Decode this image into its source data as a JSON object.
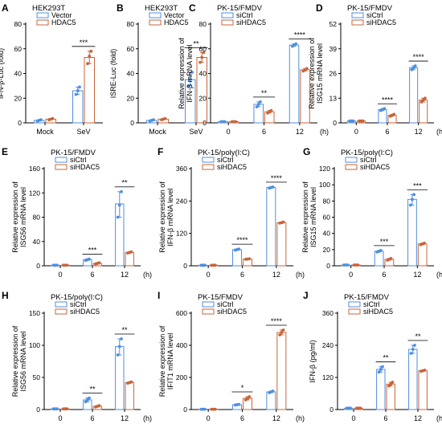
{
  "colors": {
    "series_a": "#4f8fe0",
    "series_b": "#c8643a",
    "axis": "#000000"
  },
  "chart_data": [
    {
      "panel": "A",
      "type": "bar",
      "title": "HEK293T",
      "ylabel": "IFN-β-Luc (fold)",
      "xlabel": "",
      "categories": [
        "Mock",
        "SeV"
      ],
      "ylim": [
        0,
        80
      ],
      "yticks": [
        0,
        20,
        40,
        60,
        80
      ],
      "series": [
        {
          "name": "Vector",
          "values": [
            2,
            26
          ],
          "points": [
            [
              1.5,
              2,
              2.5
            ],
            [
              23,
              26,
              29
            ]
          ]
        },
        {
          "name": "HDAC5",
          "values": [
            3,
            53
          ],
          "points": [
            [
              2.5,
              3,
              3.5
            ],
            [
              48,
              54,
              58
            ]
          ]
        }
      ],
      "significance": [
        "",
        "***"
      ]
    },
    {
      "panel": "B",
      "type": "bar",
      "title": "HEK293T",
      "ylabel": "ISRE-Luc (fold)",
      "xlabel": "",
      "categories": [
        "Mock",
        "SeV"
      ],
      "ylim": [
        0,
        80
      ],
      "yticks": [
        0,
        20,
        40,
        60,
        80
      ],
      "series": [
        {
          "name": "Vector",
          "values": [
            2,
            35
          ],
          "points": [
            [
              1.5,
              2,
              2.5
            ],
            [
              30,
              35,
              41
            ]
          ]
        },
        {
          "name": "HDAC5",
          "values": [
            3,
            53
          ],
          "points": [
            [
              2.5,
              3,
              3.5
            ],
            [
              49,
              53,
              57
            ]
          ]
        }
      ],
      "significance": [
        "",
        "**"
      ]
    },
    {
      "panel": "C",
      "type": "bar",
      "title": "PK-15/FMDV",
      "ylabel": "Relative expression of IFN-β mRNA level",
      "xlabel": "(h)",
      "categories": [
        "0",
        "6",
        "12"
      ],
      "ylim": [
        0,
        80
      ],
      "yticks": [
        0,
        20,
        40,
        60,
        80
      ],
      "series": [
        {
          "name": "siCtrl",
          "values": [
            1,
            15,
            63
          ],
          "points": [
            [
              1,
              1,
              1
            ],
            [
              13,
              15,
              17
            ],
            [
              62,
              63,
              64
            ]
          ]
        },
        {
          "name": "siHDAC5",
          "values": [
            1,
            9,
            43
          ],
          "points": [
            [
              1,
              1,
              1
            ],
            [
              8,
              9,
              10
            ],
            [
              42,
              43,
              44
            ]
          ]
        }
      ],
      "significance": [
        "",
        "**",
        "****"
      ]
    },
    {
      "panel": "D",
      "type": "bar",
      "title": "PK-15/FMDV",
      "ylabel": "Relative expression of ISG15 mRNA level",
      "xlabel": "(h)",
      "categories": [
        "0",
        "6",
        "12"
      ],
      "ylim": [
        0,
        52
      ],
      "yticks": [
        0,
        13,
        26,
        39,
        52
      ],
      "series": [
        {
          "name": "siCtrl",
          "values": [
            1,
            7,
            29
          ],
          "points": [
            [
              1,
              1,
              1
            ],
            [
              6.5,
              7,
              7.5
            ],
            [
              28,
              29,
              30
            ]
          ]
        },
        {
          "name": "siHDAC5",
          "values": [
            1,
            4,
            12
          ],
          "points": [
            [
              1,
              1,
              1
            ],
            [
              3.5,
              4,
              4.5
            ],
            [
              11,
              12,
              13
            ]
          ]
        }
      ],
      "significance": [
        "",
        "****",
        "****"
      ]
    },
    {
      "panel": "E",
      "type": "bar",
      "title": "PK-15/FMDV",
      "ylabel": "Relative expression of ISG56 mRNA level",
      "xlabel": "(h)",
      "categories": [
        "0",
        "6",
        "12"
      ],
      "ylim": [
        0,
        160
      ],
      "yticks": [
        0,
        40,
        80,
        120,
        160
      ],
      "series": [
        {
          "name": "siCtrl",
          "values": [
            1,
            10,
            102
          ],
          "points": [
            [
              1,
              1,
              1
            ],
            [
              9,
              10,
              11
            ],
            [
              80,
              100,
              122
            ]
          ]
        },
        {
          "name": "siHDAC5",
          "values": [
            1,
            4,
            22
          ],
          "points": [
            [
              1,
              1,
              1
            ],
            [
              3,
              4,
              5
            ],
            [
              21,
              22,
              23
            ]
          ]
        }
      ],
      "significance": [
        "",
        "***",
        "**"
      ]
    },
    {
      "panel": "F",
      "type": "bar",
      "title": "PK-15/poly(I:C)",
      "ylabel": "Relative expression of IFN-β mRNA level",
      "xlabel": "(h)",
      "categories": [
        "0",
        "6",
        "12"
      ],
      "ylim": [
        0,
        360
      ],
      "yticks": [
        0,
        120,
        240,
        360
      ],
      "series": [
        {
          "name": "siCtrl",
          "values": [
            2,
            60,
            290
          ],
          "points": [
            [
              2,
              2,
              2
            ],
            [
              58,
              60,
              62
            ],
            [
              288,
              290,
              292
            ]
          ]
        },
        {
          "name": "siHDAC5",
          "values": [
            2,
            25,
            160
          ],
          "points": [
            [
              2,
              2,
              2
            ],
            [
              24,
              25,
              26
            ],
            [
              158,
              160,
              162
            ]
          ]
        }
      ],
      "significance": [
        "",
        "****",
        "****"
      ]
    },
    {
      "panel": "G",
      "type": "bar",
      "title": "PK-15/poly(I:C)",
      "ylabel": "Relative expression of ISG15 mRNA level",
      "xlabel": "(h)",
      "categories": [
        "0",
        "6",
        "12"
      ],
      "ylim": [
        0,
        120
      ],
      "yticks": [
        0,
        20,
        40,
        60,
        80,
        100,
        120
      ],
      "series": [
        {
          "name": "siCtrl",
          "values": [
            1,
            18,
            82
          ],
          "points": [
            [
              1,
              1,
              1
            ],
            [
              17,
              18,
              19
            ],
            [
              75,
              82,
              88
            ]
          ]
        },
        {
          "name": "siHDAC5",
          "values": [
            1,
            8,
            27
          ],
          "points": [
            [
              1,
              1,
              1
            ],
            [
              7,
              8,
              9
            ],
            [
              26,
              27,
              28
            ]
          ]
        }
      ],
      "significance": [
        "",
        "***",
        "***"
      ]
    },
    {
      "panel": "H",
      "type": "bar",
      "title": "PK-15/poly(I:C)",
      "ylabel": "Relative expression of ISG56 mRNA level",
      "xlabel": "(h)",
      "categories": [
        "0",
        "6",
        "12"
      ],
      "ylim": [
        0,
        150
      ],
      "yticks": [
        0,
        50,
        100,
        150
      ],
      "series": [
        {
          "name": "siCtrl",
          "values": [
            1,
            15,
            98
          ],
          "points": [
            [
              1,
              1,
              1
            ],
            [
              12,
              15,
              18
            ],
            [
              85,
              98,
              110
            ]
          ]
        },
        {
          "name": "siHDAC5",
          "values": [
            1,
            5,
            42
          ],
          "points": [
            [
              1,
              1,
              1
            ],
            [
              4,
              5,
              6
            ],
            [
              41,
              42,
              43
            ]
          ]
        }
      ],
      "significance": [
        "",
        "**",
        "**"
      ]
    },
    {
      "panel": "I",
      "type": "bar",
      "title": "PK-15/FMDV",
      "ylabel": "Relative expression of IFIT1 mRNA level",
      "xlabel": "(h)",
      "categories": [
        "0",
        "6",
        "12"
      ],
      "ylim": [
        0,
        600
      ],
      "yticks": [
        0,
        200,
        400,
        600
      ],
      "series": [
        {
          "name": "siCtrl",
          "values": [
            2,
            30,
            110
          ],
          "points": [
            [
              2,
              2,
              2
            ],
            [
              28,
              30,
              32
            ],
            [
              105,
              110,
              115
            ]
          ]
        },
        {
          "name": "siHDAC5",
          "values": [
            2,
            70,
            480
          ],
          "points": [
            [
              2,
              2,
              2
            ],
            [
              60,
              70,
              80
            ],
            [
              465,
              480,
              495
            ]
          ]
        }
      ],
      "significance": [
        "",
        "*",
        "****"
      ]
    },
    {
      "panel": "J",
      "type": "bar",
      "title": "PK-15/FMDV",
      "ylabel": "IFN-β (pg/ml)",
      "xlabel": "(h)",
      "categories": [
        "0",
        "6",
        "12"
      ],
      "ylim": [
        0,
        360
      ],
      "yticks": [
        0,
        120,
        240,
        360
      ],
      "series": [
        {
          "name": "siCtrl",
          "values": [
            5,
            150,
            225
          ],
          "points": [
            [
              5,
              5,
              5
            ],
            [
              140,
              150,
              160
            ],
            [
              210,
              225,
              240
            ]
          ]
        },
        {
          "name": "siHDAC5",
          "values": [
            5,
            95,
            145
          ],
          "points": [
            [
              5,
              5,
              5
            ],
            [
              88,
              95,
              102
            ],
            [
              143,
              145,
              147
            ]
          ]
        }
      ],
      "significance": [
        "",
        "**",
        "**"
      ]
    }
  ]
}
